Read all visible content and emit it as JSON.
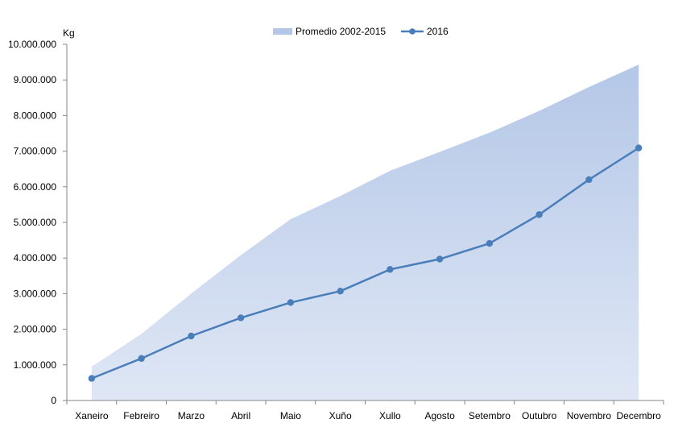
{
  "chart_data": {
    "type": "area",
    "ylabel": "Kg",
    "categories": [
      "Xaneiro",
      "Febreiro",
      "Marzo",
      "Abril",
      "Maio",
      "Xuño",
      "Xullo",
      "Agosto",
      "Setembro",
      "Outubro",
      "Novembro",
      "Decembro"
    ],
    "y_ticks": [
      "0",
      "1.000.000",
      "2.000.000",
      "3.000.000",
      "4.000.000",
      "5.000.000",
      "6.000.000",
      "7.000.000",
      "8.000.000",
      "9.000.000",
      "10.000.000"
    ],
    "ylim": [
      0,
      10000000
    ],
    "grid": false,
    "legend_position": "top-center",
    "series": [
      {
        "name": "Promedio 2002-2015",
        "kind": "area",
        "color": "#b4c7e7",
        "values": [
          950000,
          1870000,
          3000000,
          4080000,
          5090000,
          5740000,
          6450000,
          6980000,
          7520000,
          8130000,
          8800000,
          9430000
        ]
      },
      {
        "name": "2016",
        "kind": "line",
        "color": "#4a7ebb",
        "values": [
          620000,
          1180000,
          1810000,
          2320000,
          2750000,
          3070000,
          3680000,
          3970000,
          4410000,
          5220000,
          6200000,
          7090000
        ]
      }
    ]
  }
}
